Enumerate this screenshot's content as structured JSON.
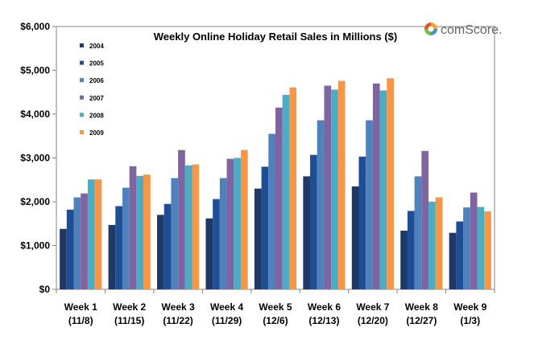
{
  "chart_data": {
    "type": "bar",
    "title": "Weekly Online Holiday Retail Sales in Millions ($)",
    "brand": "comScore.",
    "xlabel": "",
    "ylabel": "",
    "ylim": [
      0,
      6000
    ],
    "yticks": [
      "$0",
      "$1,000",
      "$2,000",
      "$3,000",
      "$4,000",
      "$5,000",
      "$6,000"
    ],
    "ytick_values": [
      0,
      1000,
      2000,
      3000,
      4000,
      5000,
      6000
    ],
    "categories": [
      [
        "Week 1",
        "(11/8)"
      ],
      [
        "Week 2",
        "(11/15)"
      ],
      [
        "Week 3",
        "(11/22)"
      ],
      [
        "Week 4",
        "(11/29)"
      ],
      [
        "Week 5",
        "(12/6)"
      ],
      [
        "Week 6",
        "(12/13)"
      ],
      [
        "Week 7",
        "(12/20)"
      ],
      [
        "Week 8",
        "(12/27)"
      ],
      [
        "Week 9",
        "(1/3)"
      ]
    ],
    "legend_position": "top-left",
    "series": [
      {
        "name": "2004",
        "color": "#1f3864",
        "values": [
          1380,
          1470,
          1700,
          1620,
          2300,
          2580,
          2350,
          1340,
          1290
        ]
      },
      {
        "name": "2005",
        "color": "#1f4e96",
        "values": [
          1820,
          1900,
          1950,
          2060,
          2800,
          3070,
          3030,
          1790,
          1550
        ]
      },
      {
        "name": "2006",
        "color": "#4f81bd",
        "values": [
          2100,
          2320,
          2540,
          2540,
          3550,
          3860,
          3860,
          2580,
          1870
        ]
      },
      {
        "name": "2007",
        "color": "#8064a2",
        "values": [
          2190,
          2810,
          3180,
          2980,
          4150,
          4650,
          4700,
          3160,
          2210
        ]
      },
      {
        "name": "2008",
        "color": "#4bacc6",
        "values": [
          2510,
          2590,
          2830,
          3000,
          4440,
          4560,
          4540,
          2000,
          1880
        ]
      },
      {
        "name": "2009",
        "color": "#f79646",
        "values": [
          2510,
          2620,
          2850,
          3180,
          4610,
          4760,
          4820,
          2100,
          1780
        ]
      }
    ]
  }
}
